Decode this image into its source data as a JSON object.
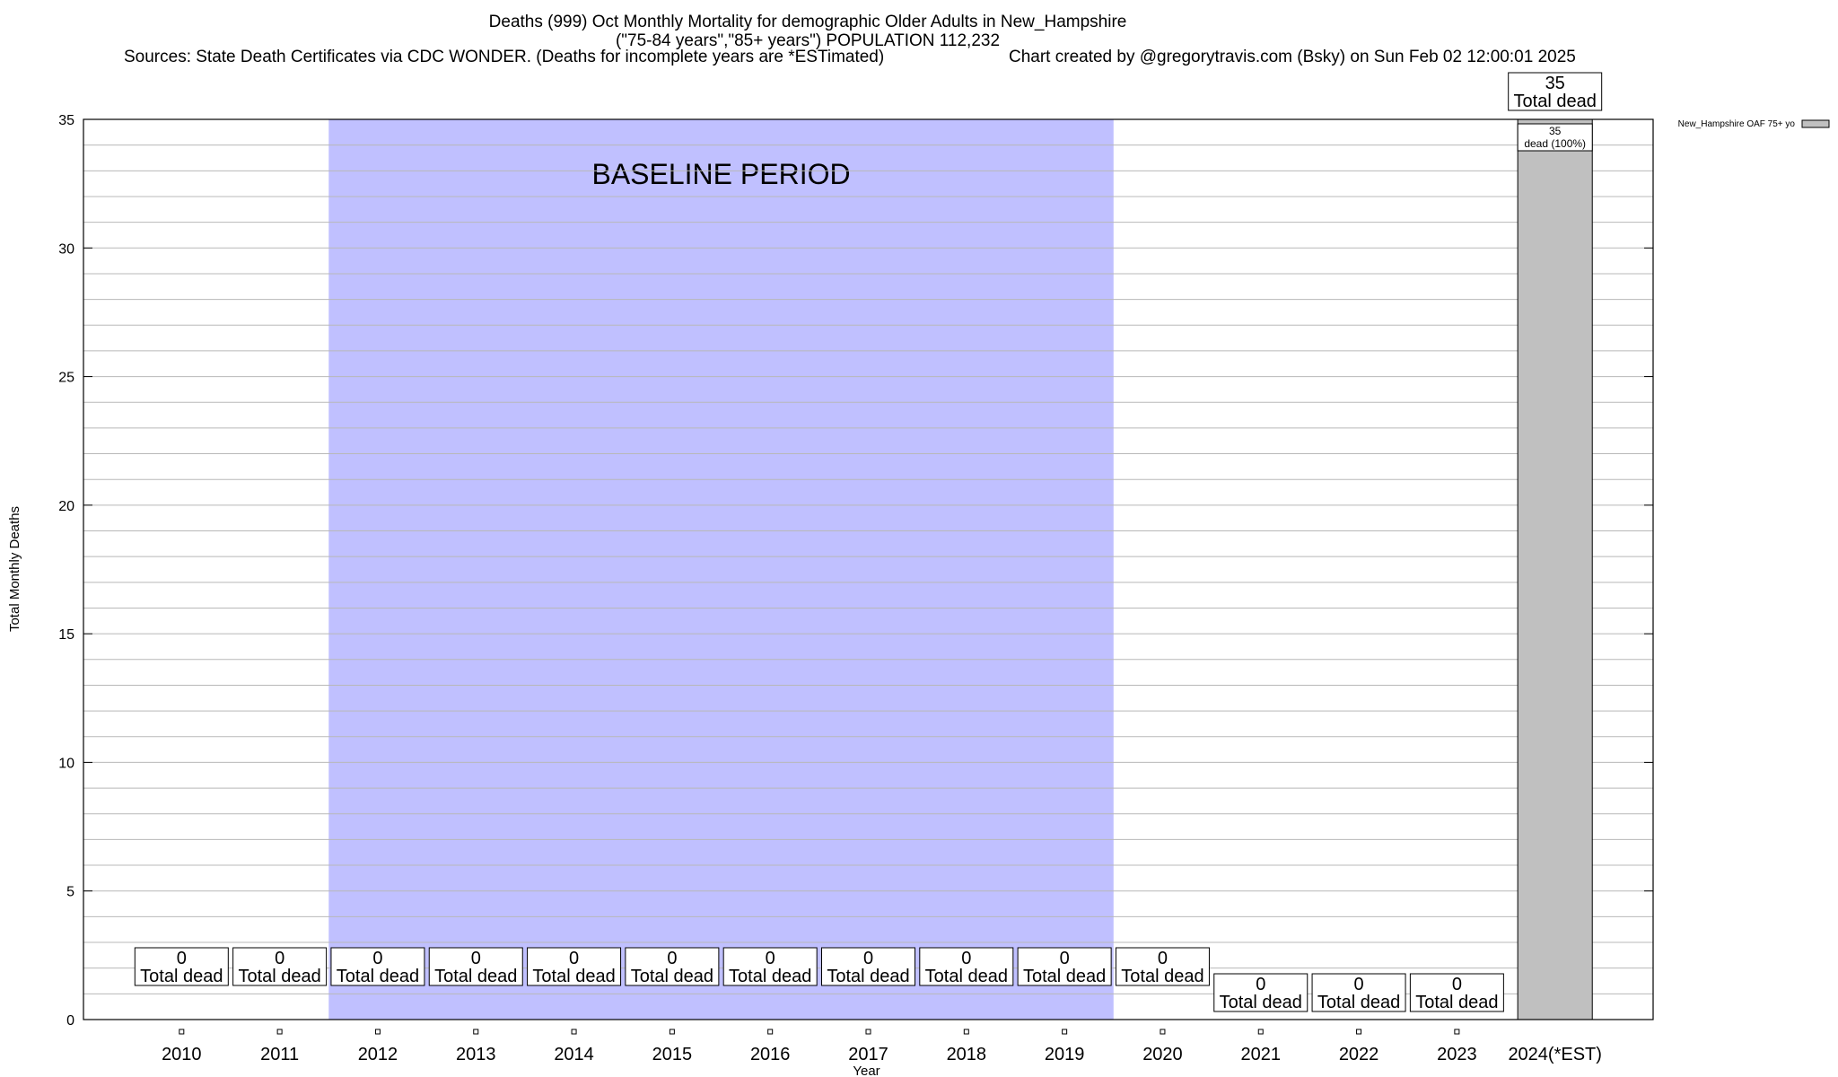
{
  "header": {
    "title_line1": "Deaths (999) Oct Monthly Mortality for demographic Older Adults in New_Hampshire",
    "title_line2": "(\"75-84 years\",\"85+ years\") POPULATION 112,232",
    "sources": "Sources: State Death Certificates via CDC WONDER. (Deaths for incomplete years are *ESTimated)",
    "credit": "Chart created by @gregorytravis.com (Bsky) on Sun Feb 02 12:00:01 2025"
  },
  "chart_data": {
    "type": "bar",
    "categories": [
      "2010",
      "2011",
      "2012",
      "2013",
      "2014",
      "2015",
      "2016",
      "2017",
      "2018",
      "2019",
      "2020",
      "2021",
      "2022",
      "2023",
      "2024(*EST)"
    ],
    "series": [
      {
        "name": "New_Hampshire OAF 75+ yo",
        "values": [
          0,
          0,
          0,
          0,
          0,
          0,
          0,
          0,
          0,
          0,
          0,
          0,
          0,
          0,
          35
        ],
        "color": "#c0c0c0"
      }
    ],
    "value_labels": [
      "0",
      "0",
      "0",
      "0",
      "0",
      "0",
      "0",
      "0",
      "0",
      "0",
      "0",
      "0",
      "0",
      "0",
      "35"
    ],
    "value_label_suffix": "Total dead",
    "segment_label": {
      "category": "2024(*EST)",
      "value": "35",
      "text": "dead (100%)"
    },
    "xlabel": "Year",
    "ylabel": "Total Monthly Deaths",
    "ylim": [
      0,
      35
    ],
    "yticks": [
      0,
      5,
      10,
      15,
      20,
      25,
      30,
      35
    ],
    "y_minor_step": 1,
    "grid": true,
    "baseline": {
      "label": "BASELINE PERIOD",
      "from": "2012",
      "to": "2019",
      "color": "#c0c0ff"
    },
    "legend_position": "top-right"
  }
}
